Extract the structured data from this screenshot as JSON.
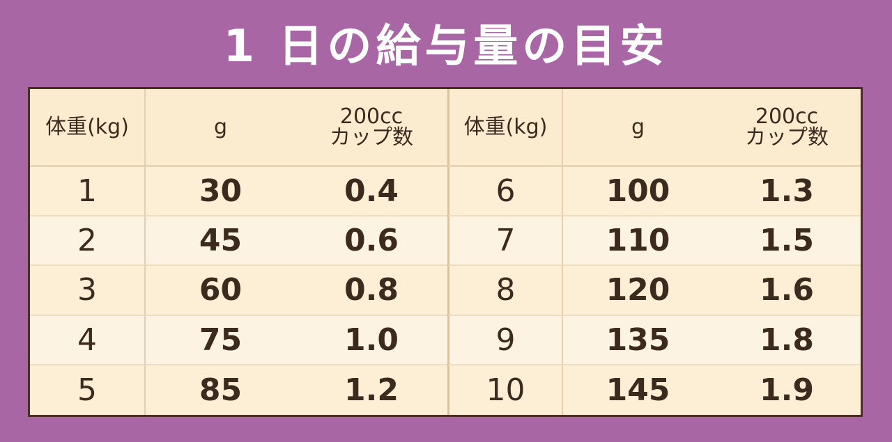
{
  "title": "1 日の給与量の目安",
  "table": {
    "header": [
      "体重(kg)",
      "g",
      "200cc\nカップ数",
      "体重(kg)",
      "g",
      "200cc\nカップ数"
    ],
    "rows": [
      [
        "1",
        "30",
        "0.4",
        "6",
        "100",
        "1.3"
      ],
      [
        "2",
        "45",
        "0.6",
        "7",
        "110",
        "1.5"
      ],
      [
        "3",
        "60",
        "0.8",
        "8",
        "120",
        "1.6"
      ],
      [
        "4",
        "75",
        "1.0",
        "9",
        "135",
        "1.8"
      ],
      [
        "5",
        "85",
        "1.2",
        "10",
        "145",
        "1.9"
      ]
    ]
  }
}
